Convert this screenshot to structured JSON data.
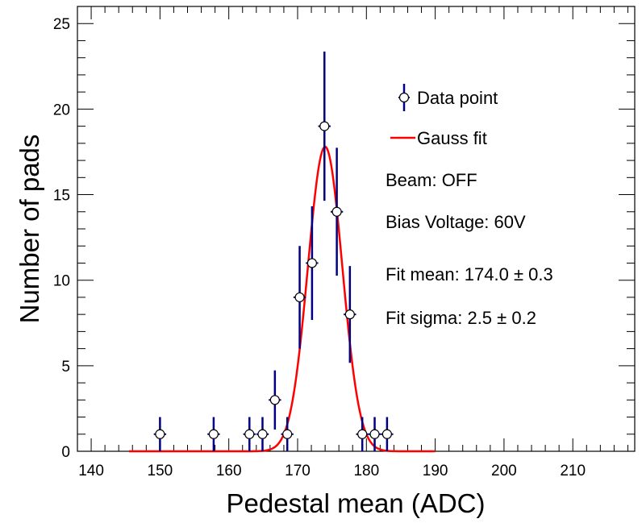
{
  "chart_data": {
    "type": "scatter",
    "xlabel": "Pedestal mean (ADC)",
    "ylabel": "Number of pads",
    "xlim": [
      138,
      219
    ],
    "ylim": [
      0,
      26
    ],
    "xticks": [
      140,
      150,
      160,
      170,
      180,
      190,
      200,
      210
    ],
    "yticks": [
      0,
      5,
      10,
      15,
      20,
      25
    ],
    "xtick_labels": [
      "140",
      "150",
      "160",
      "170",
      "180",
      "190",
      "200",
      "210"
    ],
    "ytick_labels": [
      "0",
      "5",
      "10",
      "15",
      "20",
      "25"
    ],
    "series": [
      {
        "name": "Data point",
        "kind": "points-with-errors",
        "color": "#000080",
        "x": [
          150.0,
          157.8,
          163.0,
          164.9,
          166.7,
          168.5,
          170.3,
          172.1,
          173.9,
          175.7,
          177.6,
          179.4,
          181.2,
          183.0
        ],
        "y": [
          1,
          1,
          1,
          1,
          3,
          1,
          9,
          11,
          19,
          14,
          8,
          1,
          1,
          1
        ],
        "yerr": [
          1,
          1,
          1,
          1,
          1.73,
          1,
          3,
          3.32,
          4.36,
          3.74,
          2.83,
          1,
          1,
          1
        ],
        "xerr": [
          0.9,
          0.9,
          0.9,
          0.9,
          0.9,
          0.9,
          0.9,
          0.9,
          0.9,
          0.9,
          0.9,
          0.9,
          0.9,
          0.9
        ]
      },
      {
        "name": "Gauss fit",
        "kind": "gaussian",
        "color": "#ff0000",
        "amplitude": 17.8,
        "mean": 174.0,
        "sigma": 2.5,
        "x_range": [
          145.5,
          190
        ]
      }
    ],
    "legend": {
      "position": "top-right",
      "entries": [
        {
          "label": "Data point",
          "marker": "open-circle-with-errors"
        },
        {
          "label": "Gauss fit",
          "marker": "line"
        }
      ]
    },
    "annotations": [
      "Beam: OFF",
      "Bias Voltage: 60V",
      "Fit mean: 174.0 ± 0.3",
      "Fit sigma: 2.5 ± 0.2"
    ]
  }
}
